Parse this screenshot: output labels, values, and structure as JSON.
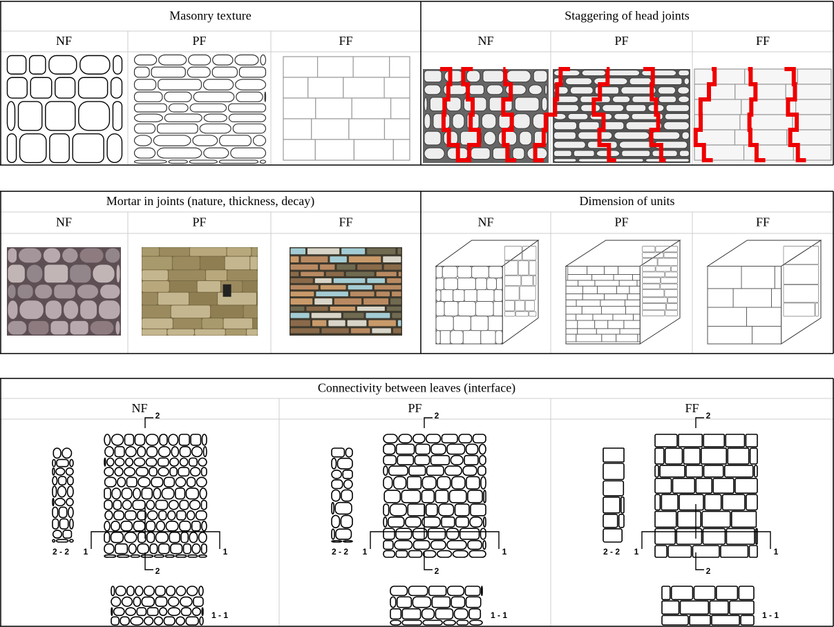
{
  "tables": [
    {
      "groups": [
        {
          "title": "Masonry texture",
          "columns": [
            "NF",
            "PF",
            "FF"
          ]
        },
        {
          "title": "Staggering of head joints",
          "columns": [
            "NF",
            "PF",
            "FF"
          ]
        }
      ]
    },
    {
      "groups": [
        {
          "title": "Mortar in joints (nature, thickness, decay)",
          "columns": [
            "NF",
            "PF",
            "FF"
          ]
        },
        {
          "title": "Dimension of units",
          "columns": [
            "NF",
            "PF",
            "FF"
          ]
        }
      ]
    },
    {
      "groups": [
        {
          "title": "Connectivity between leaves (interface)",
          "columns": [
            "NF",
            "PF",
            "FF"
          ]
        }
      ]
    }
  ],
  "section_labels": [
    "2",
    "1",
    "2 - 2",
    "1 - 1"
  ]
}
